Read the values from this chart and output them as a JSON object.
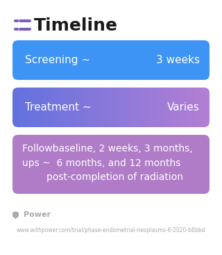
{
  "title": "Timeline",
  "background_color": "#ffffff",
  "title_color": "#1a1a1a",
  "title_fontsize": 18,
  "icon_color": "#7c5cbf",
  "bars": [
    {
      "left_text": "Screening ~",
      "right_text": "3 weeks",
      "color": "#3d94f5",
      "gradient_end": "#3d94f5",
      "text_color": "#ffffff",
      "fontsize": 11
    },
    {
      "left_text": "Treatment ~",
      "right_text": "Varies",
      "color": "#6a72e0",
      "gradient_end": "#b47fd4",
      "text_color": "#ffffff",
      "fontsize": 11
    },
    {
      "left_text": "Followbaseline, 2 weeks, 3 months,\nups ~  6 months, and 12 months\n        post-completion of radiation",
      "right_text": "",
      "color": "#b07cc8",
      "gradient_end": "#b07cc8",
      "text_color": "#ffffff",
      "fontsize": 10
    }
  ],
  "footer_logo_text": "Power",
  "footer_url": "www.withpower.com/trial/phase-endometrial-neoplasms-6-2020-b6bbd",
  "footer_color": "#aaaaaa",
  "footer_fontsize": 5.5
}
